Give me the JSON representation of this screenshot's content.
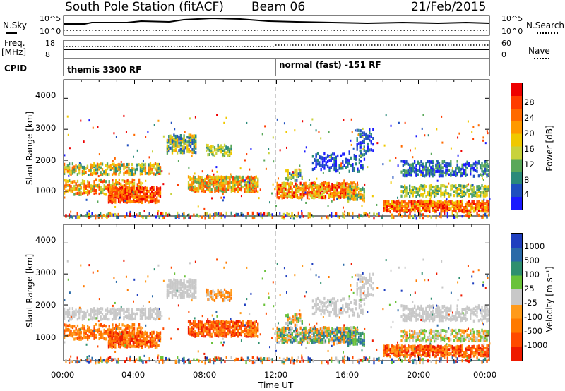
{
  "header": {
    "station": "South Pole Station (fitACF)",
    "beam": "Beam 06",
    "date": "21/Feb/2015"
  },
  "strips": {
    "nsky_label": "N.Sky",
    "nsky_top": "10^5",
    "nsky_bottom": "10^0",
    "nsearch_label": "N.Search",
    "nsearch_top": "10^5",
    "nsearch_bottom": "10^0",
    "freq_label": "Freq.",
    "freq_unit": "[MHz]",
    "freq_top": "18",
    "freq_bottom": "8",
    "nave_label": "Nave",
    "nave_top": "60",
    "nave_bottom": "0",
    "cpid_label": "CPID",
    "cpid_left": "themis 3300 RF",
    "cpid_right": "normal (fast) -151 RF"
  },
  "chart_data": [
    {
      "type": "heatmap",
      "title": "Power",
      "ylabel": "Slant Range [km]",
      "xlabel": "",
      "ylim": [
        200,
        4600
      ],
      "yticks": [
        "1000",
        "2000",
        "3000",
        "4000"
      ],
      "xticks": [],
      "colorbar": {
        "label": "Power [dB]",
        "ticks": [
          "28",
          "24",
          "20",
          "16",
          "12",
          "8",
          "4"
        ],
        "colors": [
          "#1a1aff",
          "#1f4fbf",
          "#2a8a7a",
          "#5aa85a",
          "#c8d23c",
          "#f0c800",
          "#ff9900",
          "#ff6a00",
          "#ff3c00",
          "#ee0000"
        ]
      }
    },
    {
      "type": "heatmap",
      "title": "Velocity",
      "ylabel": "Slant Range [km]",
      "xlabel": "Time UT",
      "ylim": [
        200,
        4600
      ],
      "yticks": [
        "1000",
        "2000",
        "3000",
        "4000"
      ],
      "xticks": [
        "00:00",
        "04:00",
        "08:00",
        "12:00",
        "16:00",
        "20:00",
        "00:00"
      ],
      "colorbar": {
        "label": "Velocity [m s⁻¹]",
        "ticks": [
          "1000",
          "500",
          "100",
          "25",
          "-25",
          "-100",
          "-500",
          "-1000"
        ],
        "colors": [
          "#1f3fbf",
          "#2a6aa8",
          "#2f8f6f",
          "#6ac23a",
          "#c8c8c8",
          "#ff9a1a",
          "#ff7a00",
          "#ff4a00",
          "#ee1a00"
        ]
      }
    }
  ]
}
